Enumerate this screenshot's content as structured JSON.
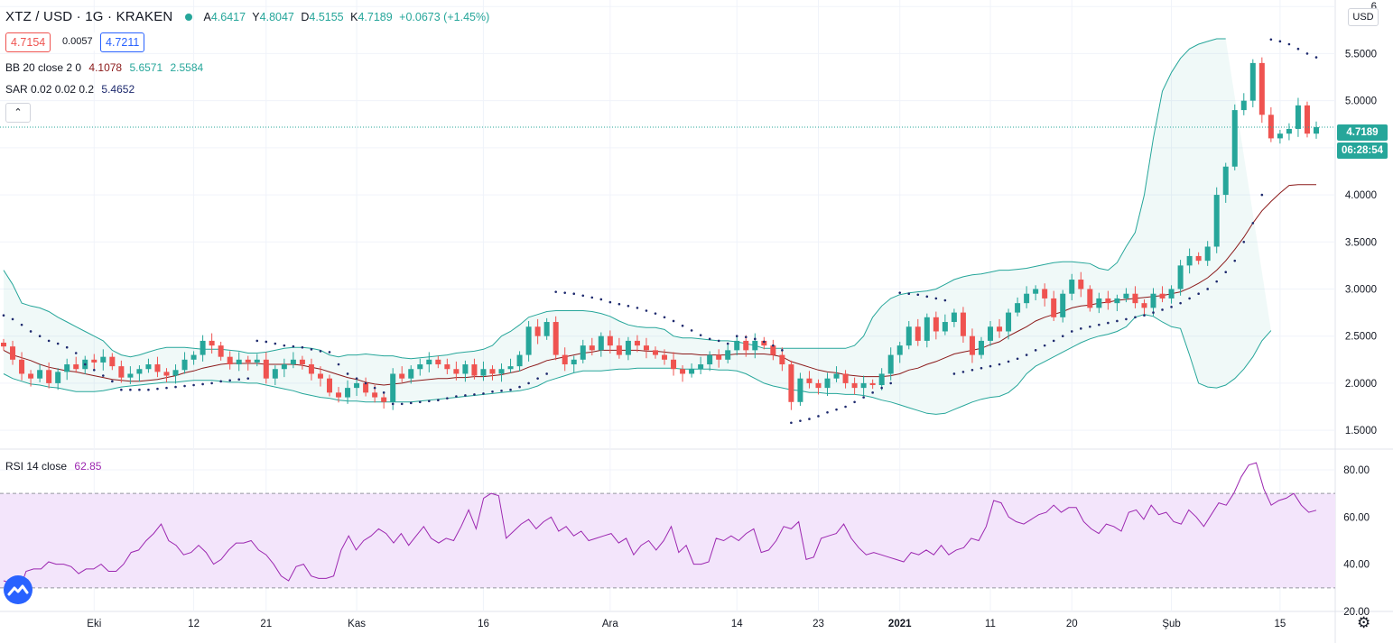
{
  "header": {
    "symbol": "XTZ / USD · 1G · KRAKEN",
    "open": "4.6417",
    "high": "4.8047",
    "low": "4.5155",
    "close": "4.7189",
    "change": "+0.0673 (+1.45%)",
    "open_label": "A",
    "high_label": "Y",
    "low_label": "D",
    "close_label": "K"
  },
  "quote": {
    "bid": "4.7154",
    "spread": "0.0057",
    "ask": "4.7211"
  },
  "indicators": {
    "bb_label": "BB 20 close 2 0",
    "bb_basis": "4.1078",
    "bb_upper": "5.6571",
    "bb_lower": "2.5584",
    "sar_label": "SAR 0.02 0.02 0.2",
    "sar_value": "5.4652",
    "rsi_label": "RSI 14 close",
    "rsi_value": "62.85"
  },
  "price_axis": {
    "currency": "USD",
    "last_price": "4.7189",
    "countdown": "06:28:54"
  },
  "colors": {
    "up": "#26a69a",
    "down": "#ef5350",
    "bb_basis": "#8b1a1a",
    "bb_band": "#26a69a",
    "sar": "#1e2a6e",
    "rsi": "#9c27b0",
    "grid": "#f0f3fa",
    "rsi_fill": "#f3e5fb"
  },
  "chart_data": [
    {
      "type": "candlestick",
      "title": "XTZ / USD",
      "y_ticks": [
        "1.5000",
        "2.0000",
        "2.5000",
        "3.0000",
        "3.5000",
        "4.0000",
        "4.5000",
        "5.0000",
        "5.5000",
        "6"
      ],
      "ylim": [
        1.3,
        6.05
      ],
      "x_ticks": [
        "Eki",
        "12",
        "21",
        "Kas",
        "16",
        "Ara",
        "14",
        "23",
        "2021",
        "11",
        "20",
        "Şub",
        "15"
      ],
      "x_tick_index": [
        10,
        21,
        29,
        39,
        53,
        67,
        81,
        90,
        99,
        109,
        118,
        129,
        141
      ],
      "closes": [
        2.39,
        2.25,
        2.1,
        2.05,
        2.14,
        2.0,
        2.12,
        2.2,
        2.15,
        2.25,
        2.22,
        2.28,
        2.18,
        2.06,
        2.1,
        2.15,
        2.2,
        2.12,
        2.08,
        2.14,
        2.25,
        2.3,
        2.45,
        2.4,
        2.28,
        2.2,
        2.25,
        2.22,
        2.25,
        2.05,
        2.15,
        2.2,
        2.25,
        2.2,
        2.1,
        2.05,
        1.9,
        1.85,
        1.95,
        2.0,
        1.9,
        1.85,
        1.8,
        2.1,
        2.05,
        2.15,
        2.2,
        2.25,
        2.2,
        2.15,
        2.1,
        2.2,
        2.08,
        2.15,
        2.1,
        2.15,
        2.18,
        2.3,
        2.6,
        2.5,
        2.65,
        2.3,
        2.2,
        2.25,
        2.4,
        2.35,
        2.5,
        2.4,
        2.3,
        2.45,
        2.4,
        2.35,
        2.3,
        2.25,
        2.15,
        2.1,
        2.15,
        2.2,
        2.3,
        2.25,
        2.35,
        2.45,
        2.35,
        2.45,
        2.4,
        2.3,
        2.2,
        1.8,
        2.05,
        2.0,
        1.95,
        2.05,
        2.1,
        2.0,
        1.95,
        2.0,
        1.98,
        2.1,
        2.3,
        2.4,
        2.6,
        2.45,
        2.7,
        2.55,
        2.65,
        2.75,
        2.5,
        2.3,
        2.45,
        2.6,
        2.55,
        2.75,
        2.85,
        2.95,
        3.0,
        2.9,
        2.7,
        2.95,
        3.1,
        3.0,
        2.8,
        2.9,
        2.85,
        2.9,
        2.95,
        2.85,
        2.8,
        2.95,
        2.9,
        3.0,
        3.25,
        3.35,
        3.3,
        3.45,
        4.0,
        4.3,
        4.9,
        5.0,
        5.4,
        4.85,
        4.6,
        4.65,
        4.7,
        4.95,
        4.65,
        4.7189
      ],
      "sar": [
        2.72,
        2.68,
        2.62,
        2.55,
        2.5,
        2.45,
        2.42,
        2.38,
        2.32,
        2.2,
        2.14,
        2.08,
        2.02,
        1.93,
        1.93,
        1.93,
        1.93,
        1.94,
        1.95,
        1.96,
        1.97,
        1.98,
        1.99,
        2.0,
        2.02,
        2.03,
        2.04,
        2.05,
        2.45,
        2.44,
        2.42,
        2.4,
        2.39,
        2.38,
        2.36,
        2.34,
        2.33,
        2.2,
        2.1,
        2.05,
        2.0,
        1.95,
        1.9,
        1.78,
        1.78,
        1.79,
        1.8,
        1.81,
        1.82,
        1.84,
        1.86,
        1.87,
        1.88,
        1.89,
        1.91,
        1.92,
        1.93,
        1.96,
        2.0,
        2.05,
        2.1,
        2.97,
        2.96,
        2.95,
        2.93,
        2.91,
        2.89,
        2.86,
        2.84,
        2.82,
        2.8,
        2.77,
        2.74,
        2.7,
        2.66,
        2.61,
        2.56,
        2.51,
        2.47,
        2.45,
        2.42,
        2.5,
        2.49,
        2.47,
        2.44,
        2.4,
        2.35,
        1.58,
        1.6,
        1.62,
        1.65,
        1.69,
        1.72,
        1.75,
        1.8,
        1.85,
        1.9,
        1.95,
        2.0,
        2.96,
        2.95,
        2.94,
        2.92,
        2.9,
        2.88,
        2.1,
        2.12,
        2.14,
        2.16,
        2.18,
        2.2,
        2.23,
        2.26,
        2.3,
        2.35,
        2.4,
        2.45,
        2.5,
        2.55,
        2.58,
        2.6,
        2.62,
        2.64,
        2.66,
        2.68,
        2.7,
        2.72,
        2.75,
        2.78,
        2.81,
        2.85,
        2.9,
        2.95,
        3.0,
        3.08,
        3.18,
        3.3,
        3.5,
        3.7,
        4.0,
        5.65,
        5.63,
        5.6,
        5.55,
        5.5,
        5.46
      ],
      "bb_basis": [
        2.35,
        2.3,
        2.27,
        2.24,
        2.2,
        2.17,
        2.15,
        2.13,
        2.12,
        2.1,
        2.08,
        2.06,
        2.04,
        2.03,
        2.02,
        2.02,
        2.03,
        2.04,
        2.06,
        2.08,
        2.11,
        2.13,
        2.16,
        2.18,
        2.2,
        2.21,
        2.21,
        2.21,
        2.21,
        2.2,
        2.2,
        2.2,
        2.2,
        2.19,
        2.17,
        2.15,
        2.12,
        2.09,
        2.06,
        2.04,
        2.01,
        1.99,
        1.98,
        1.99,
        2.0,
        2.02,
        2.03,
        2.04,
        2.05,
        2.05,
        2.06,
        2.06,
        2.07,
        2.07,
        2.08,
        2.09,
        2.11,
        2.13,
        2.17,
        2.2,
        2.24,
        2.26,
        2.28,
        2.3,
        2.32,
        2.33,
        2.35,
        2.35,
        2.35,
        2.35,
        2.35,
        2.34,
        2.34,
        2.33,
        2.32,
        2.31,
        2.31,
        2.3,
        2.3,
        2.3,
        2.3,
        2.31,
        2.31,
        2.31,
        2.31,
        2.3,
        2.28,
        2.23,
        2.2,
        2.17,
        2.14,
        2.12,
        2.11,
        2.09,
        2.08,
        2.07,
        2.07,
        2.07,
        2.08,
        2.1,
        2.14,
        2.16,
        2.2,
        2.23,
        2.27,
        2.31,
        2.33,
        2.35,
        2.37,
        2.41,
        2.44,
        2.5,
        2.55,
        2.6,
        2.66,
        2.7,
        2.73,
        2.76,
        2.8,
        2.82,
        2.83,
        2.85,
        2.86,
        2.88,
        2.89,
        2.9,
        2.91,
        2.92,
        2.93,
        2.95,
        2.97,
        3.01,
        3.06,
        3.12,
        3.2,
        3.3,
        3.42,
        3.55,
        3.7,
        3.83,
        3.93,
        4.02,
        4.1,
        4.1078,
        4.1078,
        4.1078
      ],
      "bb_upper": [
        3.2,
        3.05,
        2.85,
        2.82,
        2.8,
        2.76,
        2.7,
        2.65,
        2.6,
        2.55,
        2.5,
        2.45,
        2.35,
        2.3,
        2.28,
        2.3,
        2.33,
        2.36,
        2.38,
        2.38,
        2.38,
        2.37,
        2.36,
        2.36,
        2.36,
        2.35,
        2.34,
        2.32,
        2.32,
        2.33,
        2.35,
        2.37,
        2.38,
        2.38,
        2.37,
        2.35,
        2.3,
        2.28,
        2.3,
        2.3,
        2.31,
        2.3,
        2.29,
        2.29,
        2.27,
        2.26,
        2.27,
        2.28,
        2.29,
        2.3,
        2.32,
        2.33,
        2.34,
        2.36,
        2.4,
        2.5,
        2.55,
        2.62,
        2.7,
        2.73,
        2.76,
        2.77,
        2.77,
        2.77,
        2.77,
        2.76,
        2.74,
        2.71,
        2.66,
        2.62,
        2.6,
        2.59,
        2.59,
        2.57,
        2.5,
        2.48,
        2.48,
        2.47,
        2.46,
        2.45,
        2.45,
        2.44,
        2.42,
        2.4,
        2.37,
        2.37,
        2.37,
        2.37,
        2.37,
        2.37,
        2.37,
        2.37,
        2.37,
        2.37,
        2.4,
        2.5,
        2.7,
        2.82,
        2.9,
        2.94,
        2.96,
        2.97,
        2.98,
        3.0,
        3.05,
        3.1,
        3.13,
        3.15,
        3.16,
        3.18,
        3.2,
        3.2,
        3.21,
        3.22,
        3.24,
        3.26,
        3.28,
        3.29,
        3.29,
        3.28,
        3.27,
        3.22,
        3.2,
        3.28,
        3.45,
        3.6,
        4.0,
        4.6,
        5.1,
        5.3,
        5.45,
        5.55,
        5.6,
        5.63,
        5.6571,
        5.6571
      ],
      "bb_lower": [
        2.1,
        2.05,
        2.02,
        1.99,
        1.98,
        1.96,
        1.95,
        1.93,
        1.91,
        1.91,
        1.91,
        1.92,
        1.94,
        1.96,
        1.97,
        1.98,
        1.99,
        2.0,
        2.01,
        2.01,
        2.02,
        2.03,
        2.03,
        2.03,
        2.02,
        2.01,
        2.01,
        2.0,
        2.0,
        1.98,
        1.96,
        1.94,
        1.92,
        1.89,
        1.87,
        1.85,
        1.84,
        1.82,
        1.81,
        1.81,
        1.8,
        1.8,
        1.8,
        1.8,
        1.8,
        1.8,
        1.81,
        1.82,
        1.83,
        1.84,
        1.85,
        1.86,
        1.87,
        1.88,
        1.89,
        1.9,
        1.91,
        1.92,
        1.94,
        1.97,
        2.02,
        2.05,
        2.08,
        2.11,
        2.13,
        2.13,
        2.13,
        2.14,
        2.15,
        2.15,
        2.16,
        2.16,
        2.16,
        2.16,
        2.16,
        2.15,
        2.15,
        2.15,
        2.15,
        2.14,
        2.14,
        2.13,
        2.1,
        2.05,
        2.0,
        1.97,
        1.95,
        1.93,
        1.92,
        1.9,
        1.9,
        1.89,
        1.89,
        1.88,
        1.88,
        1.87,
        1.85,
        1.82,
        1.8,
        1.77,
        1.74,
        1.71,
        1.68,
        1.67,
        1.68,
        1.72,
        1.76,
        1.8,
        1.83,
        1.85,
        1.86,
        1.9,
        1.98,
        2.1,
        2.18,
        2.23,
        2.28,
        2.33,
        2.38,
        2.43,
        2.47,
        2.5,
        2.52,
        2.55,
        2.6,
        2.7,
        2.73,
        2.71,
        2.65,
        2.6,
        2.58,
        2.3,
        2.0,
        1.96,
        1.95,
        1.98,
        2.05,
        2.15,
        2.28,
        2.45,
        2.5584
      ]
    },
    {
      "type": "line",
      "title": "RSI 14 close",
      "y_ticks": [
        "20.00",
        "40.00",
        "60.00",
        "80.00"
      ],
      "ylim": [
        20,
        88
      ],
      "bands": [
        30,
        70
      ],
      "values": [
        33,
        32,
        28,
        37,
        38,
        38,
        41,
        40,
        40,
        39,
        36,
        38,
        38,
        40,
        37,
        37,
        40,
        45,
        46,
        50,
        53,
        57,
        50,
        48,
        44,
        45,
        48,
        45,
        40,
        42,
        46,
        49,
        49,
        50,
        46,
        44,
        40,
        35,
        33,
        39,
        40,
        35,
        34,
        34,
        35,
        46,
        52,
        46,
        50,
        52,
        55,
        53,
        49,
        53,
        48,
        52,
        56,
        51,
        49,
        51,
        50,
        56,
        63,
        55,
        68,
        70,
        69,
        51,
        54,
        57,
        59,
        55,
        58,
        60,
        54,
        56,
        52,
        54,
        50,
        51,
        52,
        53,
        49,
        51,
        44,
        48,
        50,
        46,
        50,
        56,
        45,
        48,
        40,
        40,
        41,
        51,
        50,
        52,
        50,
        53,
        55,
        45,
        46,
        50,
        56,
        55,
        58,
        42,
        43,
        51,
        52,
        53,
        57,
        51,
        47,
        44,
        45,
        44,
        43,
        42,
        41,
        45,
        44,
        46,
        44,
        48,
        44,
        46,
        47,
        51,
        50,
        56,
        67,
        66,
        60,
        58,
        57,
        59,
        61,
        62,
        65,
        62,
        64,
        64,
        58,
        55,
        53,
        57,
        56,
        54,
        62,
        63,
        59,
        65,
        61,
        62,
        58,
        57,
        63,
        60,
        56,
        61,
        66,
        65,
        70,
        77,
        82,
        83,
        72,
        65,
        67,
        68,
        70,
        65,
        62,
        62.85
      ]
    }
  ]
}
